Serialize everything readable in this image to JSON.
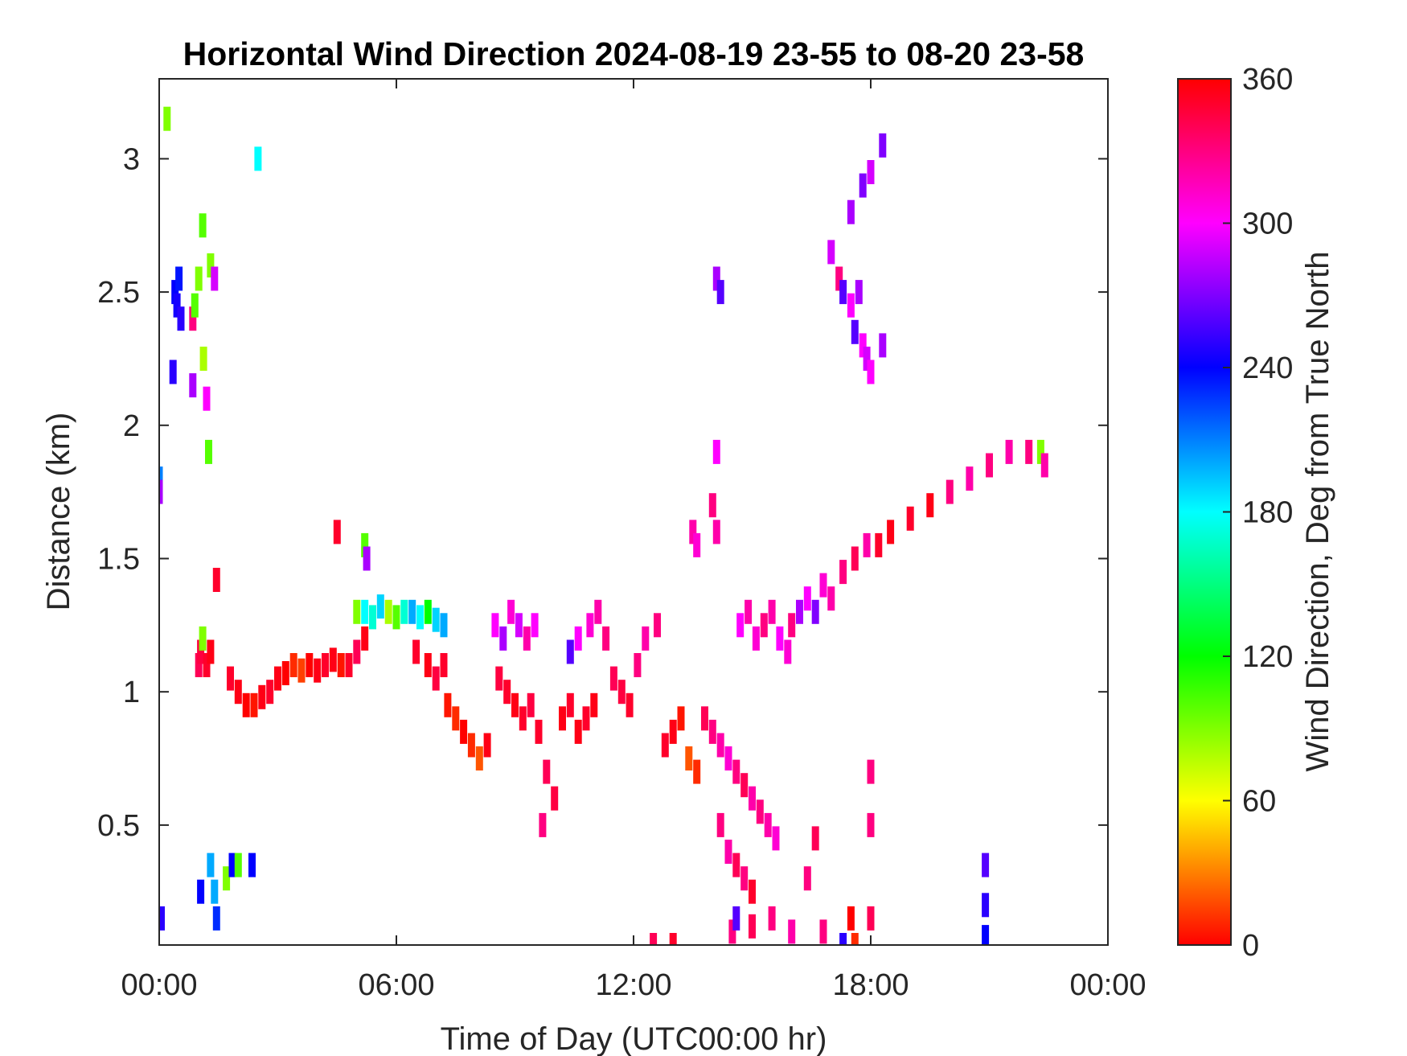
{
  "chart_data": {
    "type": "heatmap",
    "title": "Horizontal Wind Direction 2024-08-19 23-55 to 08-20 23-58",
    "xlabel": "Time of Day (UTC00:00 hr)",
    "ylabel": "Distance (km)",
    "colorbar_label": "Wind Direction, Deg from True North",
    "xlim": [
      0,
      24
    ],
    "ylim": [
      0.05,
      3.3
    ],
    "x_ticks": [
      0,
      6,
      12,
      18,
      24
    ],
    "x_tick_labels": [
      "00:00",
      "06:00",
      "12:00",
      "18:00",
      "00:00"
    ],
    "y_ticks": [
      0.5,
      1,
      1.5,
      2,
      2.5,
      3
    ],
    "y_tick_labels": [
      "0.5",
      "1",
      "1.5",
      "2",
      "2.5",
      "3"
    ],
    "color_range": [
      0,
      360
    ],
    "colorbar_ticks": [
      0,
      60,
      120,
      180,
      240,
      300,
      360
    ],
    "colorbar_tick_labels": [
      "0",
      "60",
      "120",
      "180",
      "240",
      "300",
      "360"
    ],
    "colormap": [
      "#ff0000",
      "#ffff00",
      "#00ff00",
      "#00ffff",
      "#0000ff",
      "#ff00ff",
      "#ff0000"
    ],
    "grid": false,
    "cells": [
      [
        0.0,
        1.8,
        210
      ],
      [
        0.0,
        1.75,
        280
      ],
      [
        0.05,
        0.15,
        250
      ],
      [
        0.2,
        3.15,
        90
      ],
      [
        0.35,
        2.2,
        250
      ],
      [
        0.4,
        2.5,
        240
      ],
      [
        0.45,
        2.45,
        245
      ],
      [
        0.5,
        2.55,
        235
      ],
      [
        0.55,
        2.4,
        250
      ],
      [
        0.85,
        2.4,
        330
      ],
      [
        0.9,
        2.45,
        100
      ],
      [
        0.85,
        2.15,
        280
      ],
      [
        1.0,
        2.55,
        90
      ],
      [
        1.1,
        2.75,
        100
      ],
      [
        1.12,
        2.25,
        80
      ],
      [
        1.2,
        2.1,
        300
      ],
      [
        1.25,
        1.9,
        100
      ],
      [
        1.3,
        2.6,
        90
      ],
      [
        1.4,
        2.55,
        290
      ],
      [
        1.0,
        1.1,
        340
      ],
      [
        1.05,
        1.15,
        345
      ],
      [
        1.1,
        1.2,
        90
      ],
      [
        1.2,
        1.1,
        350
      ],
      [
        1.3,
        1.15,
        355
      ],
      [
        1.45,
        1.42,
        350
      ],
      [
        1.4,
        0.25,
        200
      ],
      [
        1.45,
        0.15,
        230
      ],
      [
        1.3,
        0.35,
        200
      ],
      [
        1.05,
        0.25,
        240
      ],
      [
        1.7,
        0.3,
        90
      ],
      [
        1.85,
        0.35,
        240
      ],
      [
        2.0,
        0.35,
        100
      ],
      [
        2.35,
        0.35,
        240
      ],
      [
        2.5,
        3.0,
        180
      ],
      [
        1.8,
        1.05,
        350
      ],
      [
        2.0,
        1.0,
        355
      ],
      [
        2.2,
        0.95,
        0
      ],
      [
        2.4,
        0.95,
        5
      ],
      [
        2.6,
        0.98,
        355
      ],
      [
        2.8,
        1.0,
        350
      ],
      [
        3.0,
        1.05,
        355
      ],
      [
        3.2,
        1.07,
        0
      ],
      [
        3.4,
        1.1,
        10
      ],
      [
        3.6,
        1.08,
        15
      ],
      [
        3.8,
        1.1,
        0
      ],
      [
        4.0,
        1.08,
        355
      ],
      [
        4.2,
        1.1,
        350
      ],
      [
        4.4,
        1.12,
        355
      ],
      [
        4.6,
        1.1,
        5
      ],
      [
        4.8,
        1.1,
        350
      ],
      [
        5.0,
        1.15,
        340
      ],
      [
        5.2,
        1.2,
        355
      ],
      [
        4.5,
        1.6,
        350
      ],
      [
        5.2,
        1.55,
        100
      ],
      [
        5.25,
        1.5,
        280
      ],
      [
        5.0,
        1.3,
        90
      ],
      [
        5.2,
        1.3,
        180
      ],
      [
        5.4,
        1.28,
        170
      ],
      [
        5.6,
        1.32,
        190
      ],
      [
        5.8,
        1.3,
        80
      ],
      [
        6.0,
        1.28,
        100
      ],
      [
        6.2,
        1.3,
        170
      ],
      [
        6.4,
        1.3,
        200
      ],
      [
        6.6,
        1.28,
        180
      ],
      [
        6.8,
        1.3,
        120
      ],
      [
        7.0,
        1.27,
        190
      ],
      [
        7.2,
        1.25,
        200
      ],
      [
        6.5,
        1.15,
        350
      ],
      [
        6.8,
        1.1,
        355
      ],
      [
        7.0,
        1.05,
        345
      ],
      [
        7.2,
        1.1,
        350
      ],
      [
        7.3,
        0.95,
        5
      ],
      [
        7.5,
        0.9,
        10
      ],
      [
        7.7,
        0.85,
        0
      ],
      [
        7.9,
        0.8,
        10
      ],
      [
        8.1,
        0.75,
        20
      ],
      [
        8.3,
        0.8,
        355
      ],
      [
        8.5,
        1.25,
        300
      ],
      [
        8.7,
        1.2,
        280
      ],
      [
        8.9,
        1.3,
        310
      ],
      [
        9.1,
        1.25,
        290
      ],
      [
        9.3,
        1.2,
        320
      ],
      [
        9.5,
        1.25,
        300
      ],
      [
        8.6,
        1.05,
        345
      ],
      [
        8.8,
        1.0,
        350
      ],
      [
        9.0,
        0.95,
        355
      ],
      [
        9.2,
        0.9,
        350
      ],
      [
        9.4,
        0.95,
        345
      ],
      [
        9.6,
        0.85,
        350
      ],
      [
        9.8,
        0.7,
        340
      ],
      [
        10.0,
        0.6,
        345
      ],
      [
        9.7,
        0.5,
        330
      ],
      [
        10.2,
        0.9,
        355
      ],
      [
        10.4,
        0.95,
        350
      ],
      [
        10.6,
        0.85,
        355
      ],
      [
        10.8,
        0.9,
        350
      ],
      [
        11.0,
        0.95,
        355
      ],
      [
        10.4,
        1.15,
        260
      ],
      [
        10.6,
        1.2,
        300
      ],
      [
        10.9,
        1.25,
        310
      ],
      [
        11.1,
        1.3,
        320
      ],
      [
        11.3,
        1.2,
        330
      ],
      [
        11.5,
        1.05,
        340
      ],
      [
        11.7,
        1.0,
        345
      ],
      [
        11.9,
        0.95,
        350
      ],
      [
        12.1,
        1.1,
        330
      ],
      [
        12.3,
        1.2,
        320
      ],
      [
        12.6,
        1.25,
        330
      ],
      [
        12.8,
        0.8,
        350
      ],
      [
        13.0,
        0.85,
        355
      ],
      [
        13.2,
        0.9,
        5
      ],
      [
        13.4,
        0.75,
        20
      ],
      [
        13.6,
        0.7,
        10
      ],
      [
        13.5,
        1.6,
        320
      ],
      [
        13.6,
        1.55,
        310
      ],
      [
        14.0,
        1.7,
        330
      ],
      [
        14.1,
        1.6,
        320
      ],
      [
        14.1,
        1.9,
        300
      ],
      [
        14.1,
        2.55,
        280
      ],
      [
        14.2,
        2.5,
        260
      ],
      [
        13.8,
        0.9,
        340
      ],
      [
        14.0,
        0.85,
        330
      ],
      [
        14.2,
        0.8,
        320
      ],
      [
        14.4,
        0.75,
        310
      ],
      [
        14.6,
        0.7,
        330
      ],
      [
        14.8,
        0.65,
        340
      ],
      [
        15.0,
        0.6,
        320
      ],
      [
        15.2,
        0.55,
        330
      ],
      [
        15.4,
        0.5,
        320
      ],
      [
        15.6,
        0.45,
        310
      ],
      [
        14.2,
        0.5,
        330
      ],
      [
        14.4,
        0.4,
        320
      ],
      [
        14.6,
        0.35,
        340
      ],
      [
        14.8,
        0.3,
        330
      ],
      [
        15.0,
        0.25,
        350
      ],
      [
        14.5,
        0.1,
        330
      ],
      [
        15.0,
        0.12,
        340
      ],
      [
        15.5,
        0.15,
        330
      ],
      [
        16.0,
        0.1,
        320
      ],
      [
        14.6,
        0.15,
        260
      ],
      [
        14.7,
        1.25,
        300
      ],
      [
        14.9,
        1.3,
        320
      ],
      [
        15.1,
        1.2,
        310
      ],
      [
        15.3,
        1.25,
        330
      ],
      [
        15.5,
        1.3,
        320
      ],
      [
        15.7,
        1.2,
        300
      ],
      [
        15.9,
        1.15,
        310
      ],
      [
        16.0,
        1.25,
        330
      ],
      [
        16.2,
        1.3,
        280
      ],
      [
        16.4,
        1.35,
        300
      ],
      [
        16.6,
        1.3,
        270
      ],
      [
        16.8,
        1.4,
        310
      ],
      [
        17.0,
        1.35,
        320
      ],
      [
        17.3,
        1.45,
        330
      ],
      [
        17.6,
        1.5,
        340
      ],
      [
        17.9,
        1.55,
        320
      ],
      [
        18.2,
        1.55,
        350
      ],
      [
        18.5,
        1.6,
        355
      ],
      [
        19.0,
        1.65,
        350
      ],
      [
        19.5,
        1.7,
        355
      ],
      [
        20.0,
        1.75,
        330
      ],
      [
        20.5,
        1.8,
        320
      ],
      [
        21.0,
        1.85,
        330
      ],
      [
        21.5,
        1.9,
        320
      ],
      [
        22.0,
        1.9,
        330
      ],
      [
        22.3,
        1.9,
        90
      ],
      [
        22.4,
        1.85,
        320
      ],
      [
        17.0,
        2.65,
        290
      ],
      [
        17.2,
        2.55,
        330
      ],
      [
        17.3,
        2.5,
        260
      ],
      [
        17.5,
        2.45,
        300
      ],
      [
        17.7,
        2.5,
        280
      ],
      [
        17.6,
        2.35,
        260
      ],
      [
        17.8,
        2.3,
        300
      ],
      [
        17.9,
        2.25,
        290
      ],
      [
        18.0,
        2.2,
        300
      ],
      [
        18.3,
        2.3,
        280
      ],
      [
        17.5,
        2.8,
        280
      ],
      [
        17.8,
        2.9,
        270
      ],
      [
        18.0,
        2.95,
        290
      ],
      [
        18.3,
        3.05,
        270
      ],
      [
        18.0,
        0.7,
        330
      ],
      [
        18.0,
        0.5,
        330
      ],
      [
        18.0,
        0.15,
        340
      ],
      [
        17.5,
        0.15,
        0
      ],
      [
        17.3,
        0.05,
        250
      ],
      [
        17.6,
        0.05,
        10
      ],
      [
        16.4,
        0.3,
        330
      ],
      [
        16.8,
        0.1,
        330
      ],
      [
        16.6,
        0.45,
        340
      ],
      [
        12.5,
        0.05,
        340
      ],
      [
        13.0,
        0.05,
        350
      ],
      [
        20.9,
        0.35,
        260
      ],
      [
        20.9,
        0.2,
        250
      ],
      [
        20.9,
        0.08,
        240
      ]
    ]
  }
}
